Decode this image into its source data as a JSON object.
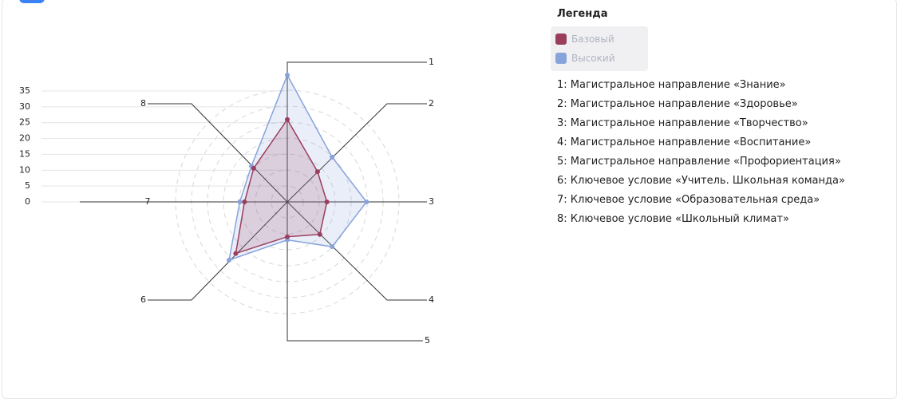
{
  "chart_data": {
    "type": "radar",
    "axes": [
      "1",
      "2",
      "3",
      "4",
      "5",
      "6",
      "7",
      "8"
    ],
    "series": [
      {
        "name": "Базовый",
        "color": "#9b3d5d",
        "values": [
          26,
          13.5,
          12.5,
          14.5,
          11,
          23,
          13.5,
          15
        ]
      },
      {
        "name": "Высокий",
        "color": "#87a3dc",
        "values": [
          40,
          20,
          25,
          20,
          12,
          26,
          15,
          16
        ]
      }
    ],
    "ylim": [
      0,
      35
    ],
    "yticks": [
      0,
      5,
      10,
      15,
      20,
      25,
      30,
      35
    ],
    "legend_title": "Легенда",
    "descriptions": [
      "1: Магистральное направление «Знание»",
      "2: Магистральное направление «Здоровье»",
      "3: Магистральное направление «Творчество»",
      "4: Магистральное направление «Воспитание»",
      "5: Магистральное направление «Профориентация»",
      "6: Ключевое условие «Учитель. Школьная команда»",
      "7: Ключевое условие «Образовательная среда»",
      "8: Ключевое условие «Школьный климат»"
    ]
  }
}
